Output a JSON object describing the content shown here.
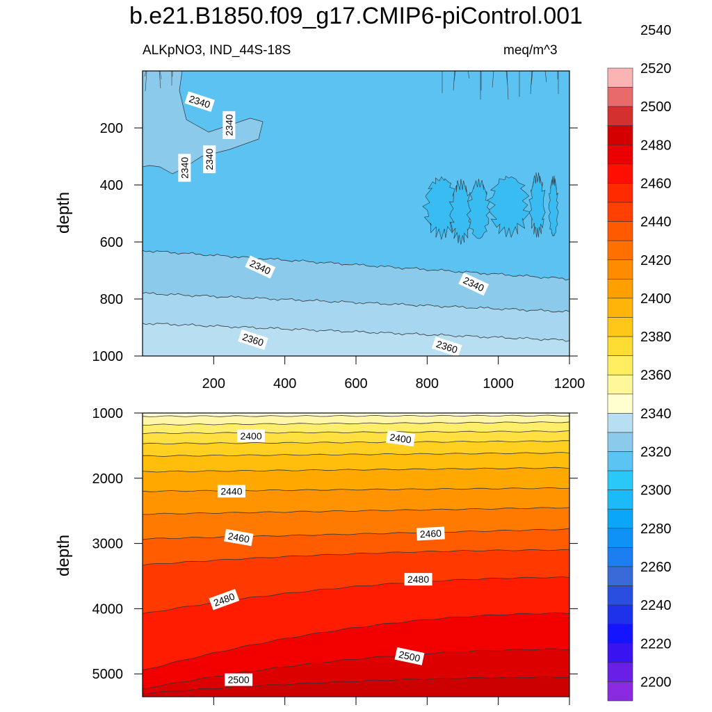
{
  "chart_data": {
    "type": "heatmap",
    "title": "b.e21.B1850.f09_g17.CMIP6-piControl.001",
    "variable_label": "ALKpNO3, IND_44S-18S",
    "units": "meq/m^3",
    "panels": [
      {
        "name": "upper",
        "xlabel": "",
        "ylabel": "depth",
        "xlim": [
          0,
          1200
        ],
        "ylim": [
          1000,
          0
        ],
        "xticks": [
          "200",
          "400",
          "600",
          "800",
          "1000",
          "1200"
        ],
        "yticks": [
          "200",
          "400",
          "600",
          "800",
          "1000"
        ],
        "contour_labels": [
          {
            "text": "2340",
            "x": 160,
            "y": 110
          },
          {
            "text": "2340",
            "x": 245,
            "y": 190
          },
          {
            "text": "2340",
            "x": 120,
            "y": 340
          },
          {
            "text": "2340",
            "x": 190,
            "y": 310
          },
          {
            "text": "2340",
            "x": 330,
            "y": 690
          },
          {
            "text": "2340",
            "x": 930,
            "y": 750
          },
          {
            "text": "2360",
            "x": 310,
            "y": 945
          },
          {
            "text": "2360",
            "x": 855,
            "y": 970
          }
        ]
      },
      {
        "name": "lower",
        "xlabel": "",
        "ylabel": "depth",
        "xlim": [
          0,
          1200
        ],
        "ylim": [
          5350,
          1000
        ],
        "yticks": [
          "1000",
          "2000",
          "3000",
          "4000",
          "5000"
        ],
        "contour_labels": [
          {
            "text": "2400",
            "x": 305,
            "y": 1360
          },
          {
            "text": "2400",
            "x": 725,
            "y": 1400
          },
          {
            "text": "2440",
            "x": 250,
            "y": 2210
          },
          {
            "text": "2460",
            "x": 270,
            "y": 2920
          },
          {
            "text": "2460",
            "x": 810,
            "y": 2860
          },
          {
            "text": "2480",
            "x": 230,
            "y": 3870
          },
          {
            "text": "2480",
            "x": 775,
            "y": 3560
          },
          {
            "text": "2500",
            "x": 270,
            "y": 5100
          },
          {
            "text": "2500",
            "x": 750,
            "y": 4740
          }
        ]
      }
    ],
    "colorbar": {
      "levels": [
        "2200",
        "2220",
        "2240",
        "2260",
        "2280",
        "2300",
        "2320",
        "2340",
        "2360",
        "2380",
        "2400",
        "2420",
        "2440",
        "2460",
        "2480",
        "2500",
        "2520",
        "2540"
      ],
      "colors": [
        "#8a2be2",
        "#6a1fe6",
        "#3a14f0",
        "#1414ff",
        "#1e32ec",
        "#2a4ee0",
        "#3a6ad8",
        "#1c7ef0",
        "#0f92f6",
        "#0aa6f8",
        "#1cbaf8",
        "#2ac8f8",
        "#5cc4f2",
        "#8ccaec",
        "#b8def2",
        "#ffffd0",
        "#fff79a",
        "#ffee60",
        "#ffdc32",
        "#ffc818",
        "#ffb40a",
        "#ffa000",
        "#ff8c00",
        "#ff7000",
        "#ff5a00",
        "#ff4000",
        "#ff2a00",
        "#ff1000",
        "#ea0000",
        "#d40000",
        "#d43030",
        "#e86a6a",
        "#fbb4b4"
      ]
    },
    "bands_upper": [
      {
        "value": "2330-2340",
        "color": "#5bc2f2"
      },
      {
        "value": "2340-2350",
        "color": "#8ccaec"
      },
      {
        "value": "2350-2360",
        "color": "#a6d6f0"
      },
      {
        "value": "2360-2370",
        "color": "#b8def2"
      }
    ],
    "bands_lower": [
      {
        "value": "2380",
        "color": "#fffbd8"
      },
      {
        "value": "2390",
        "color": "#fff6a8"
      },
      {
        "value": "2400",
        "color": "#ffee6a"
      },
      {
        "value": "2410",
        "color": "#ffe040"
      },
      {
        "value": "2420",
        "color": "#ffd020"
      },
      {
        "value": "2430",
        "color": "#ffbd0c"
      },
      {
        "value": "2440",
        "color": "#ffa800"
      },
      {
        "value": "2450",
        "color": "#ff9400"
      },
      {
        "value": "2460",
        "color": "#ff7a00"
      },
      {
        "value": "2470",
        "color": "#ff5c00"
      },
      {
        "value": "2480",
        "color": "#ff3a00"
      },
      {
        "value": "2490",
        "color": "#ff1c00"
      },
      {
        "value": "2500",
        "color": "#f20000"
      },
      {
        "value": "2510",
        "color": "#dc0000"
      },
      {
        "value": "2520",
        "color": "#cc0000"
      }
    ]
  }
}
